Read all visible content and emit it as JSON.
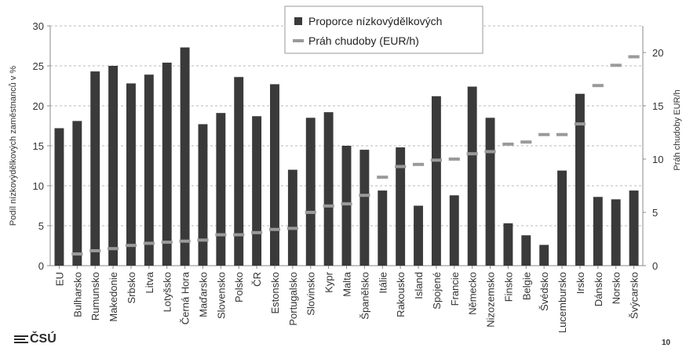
{
  "chart_data": {
    "type": "bar",
    "categories": [
      "EU",
      "Bulharsko",
      "Rumunsko",
      "Makedonie",
      "Srbsko",
      "Litva",
      "Lotyšsko",
      "Černá Hora",
      "Maďarsko",
      "Slovensko",
      "Polsko",
      "ČR",
      "Estonsko",
      "Portugalsko",
      "Slovinsko",
      "Kypr",
      "Malta",
      "Španělsko",
      "Itálie",
      "Rakousko",
      "Island",
      "Spojené",
      "Francie",
      "Německo",
      "Nizozemsko",
      "Finsko",
      "Belgie",
      "Švédsko",
      "Lucembursko",
      "Irsko",
      "Dánsko",
      "Norsko",
      "Švýcarsko"
    ],
    "series": [
      {
        "name": "Proporce nízkovýdělkových",
        "type": "bar",
        "axis": "left",
        "color": "#3a3a3a",
        "values": [
          17.2,
          18.1,
          24.3,
          25.0,
          22.8,
          23.9,
          25.4,
          27.3,
          17.7,
          19.1,
          23.6,
          18.7,
          22.7,
          12.0,
          18.5,
          19.2,
          15.0,
          14.5,
          9.4,
          14.8,
          7.5,
          21.2,
          8.8,
          22.4,
          18.5,
          5.3,
          3.8,
          2.6,
          11.9,
          21.5,
          8.6,
          8.3,
          9.4
        ]
      },
      {
        "name": "Práh chudoby (EUR/h)",
        "type": "marker",
        "axis": "right",
        "color": "#9a9a9a",
        "values": [
          null,
          1.1,
          1.4,
          1.6,
          1.9,
          2.1,
          2.2,
          2.3,
          2.4,
          2.9,
          2.9,
          3.1,
          3.4,
          3.5,
          5.0,
          5.6,
          5.8,
          6.6,
          8.3,
          9.3,
          9.5,
          9.9,
          10.0,
          10.5,
          10.7,
          11.4,
          11.6,
          12.3,
          12.3,
          13.3,
          16.9,
          18.8,
          19.6
        ]
      }
    ],
    "ylabel": "Podíl nízkovýdělkových zaměstnanců v %",
    "y2label": "Práh chudoby EUR/h",
    "ylim": [
      0,
      30
    ],
    "yticks": [
      0,
      5,
      10,
      15,
      20,
      25,
      30
    ],
    "y2lim": [
      0,
      22.5
    ],
    "y2ticks": [
      0,
      5,
      10,
      15,
      20
    ],
    "grid": true,
    "legend_position": "top-center"
  },
  "footer": {
    "logo_text": "ČSÚ",
    "page_number": "10"
  }
}
